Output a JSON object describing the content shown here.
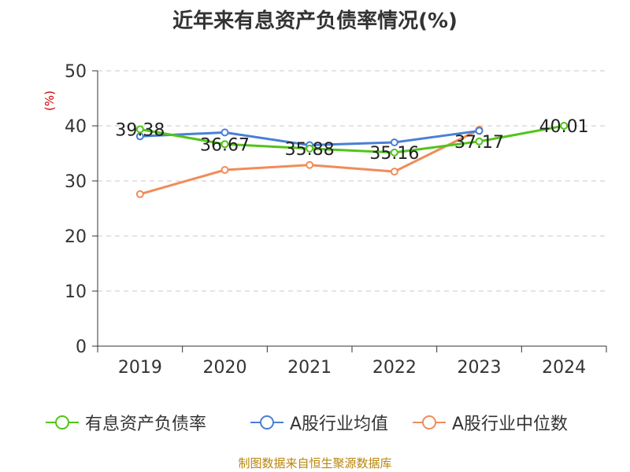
{
  "chart_data": {
    "type": "line",
    "title": "近年来有息资产负债率情况(%)",
    "ylabel": "(%)",
    "xlabel": "",
    "categories": [
      "2019",
      "2020",
      "2021",
      "2022",
      "2023",
      "2024"
    ],
    "ylim": [
      0,
      50
    ],
    "yticks": [
      0,
      10,
      20,
      30,
      40,
      50
    ],
    "grid": true,
    "legend_position": "bottom",
    "series": [
      {
        "name": "有息资产负债率",
        "color": "#52c41a",
        "values": [
          39.38,
          36.67,
          35.88,
          35.16,
          37.17,
          40.01
        ],
        "labels": [
          "39.38",
          "36.67",
          "35.88",
          "35.16",
          "37.17",
          "40.01"
        ]
      },
      {
        "name": "A股行业均值",
        "color": "#4a7fd6",
        "values": [
          38.1,
          38.8,
          36.5,
          37.0,
          39.1,
          null
        ]
      },
      {
        "name": "A股行业中位数",
        "color": "#f08c5a",
        "values": [
          27.6,
          32.0,
          32.9,
          31.7,
          39.3,
          null
        ]
      }
    ]
  },
  "source_text": "制图数据来自恒生聚源数据库"
}
